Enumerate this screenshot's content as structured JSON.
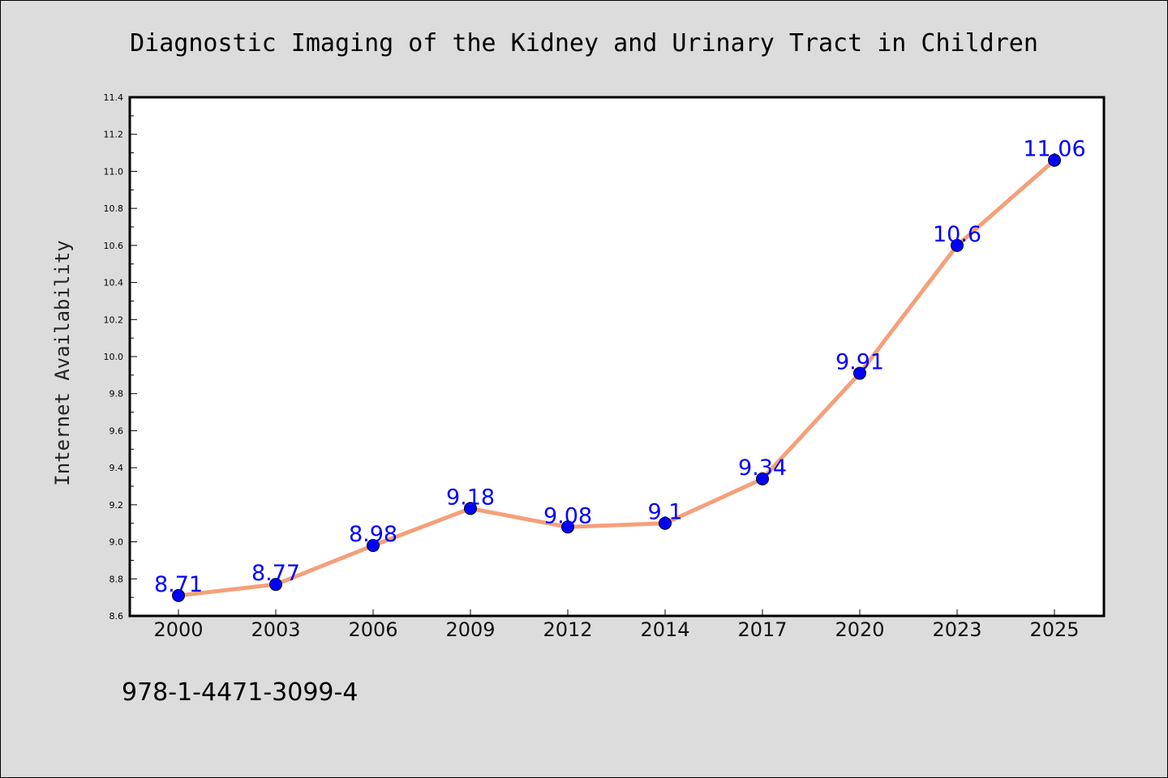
{
  "chart_data": {
    "type": "line",
    "title": "Diagnostic Imaging of the Kidney and Urinary Tract in Children",
    "xlabel": "",
    "ylabel": "Internet Availability",
    "categories": [
      "2000",
      "2003",
      "2006",
      "2009",
      "2012",
      "2014",
      "2017",
      "2020",
      "2023",
      "2025"
    ],
    "series": [
      {
        "values": [
          8.71,
          8.77,
          8.98,
          9.18,
          9.08,
          9.1,
          9.34,
          9.91,
          10.6,
          11.06
        ],
        "data_labels": [
          "8.71",
          "8.77",
          "8.98",
          "9.18",
          "9.08",
          "9.1",
          "9.34",
          "9.91",
          "10.6",
          "11.06"
        ],
        "line_color": "#f4a07a",
        "marker_color": "#0000ff"
      }
    ],
    "ylim": [
      8.6,
      11.4
    ],
    "yticks": [
      "8.6",
      "8.8",
      "9.0",
      "9.2",
      "9.4",
      "9.6",
      "9.8",
      "10.0",
      "10.2",
      "10.4",
      "10.6",
      "10.8",
      "11.0",
      "11.2",
      "11.4"
    ],
    "grid": false,
    "legend": "none",
    "plot_background": "#ffffff",
    "figure_background": "#dcdcdc",
    "label_color": "#0000ff"
  },
  "footer": {
    "isbn": "978-1-4471-3099-4"
  }
}
